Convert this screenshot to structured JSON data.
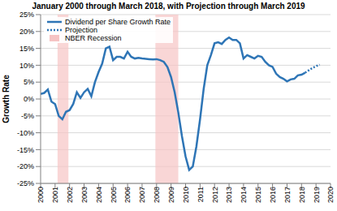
{
  "chart_data": {
    "type": "line",
    "title": "January 2000 through March 2018, with Projection through March 2019",
    "y_label": "Growth Rate",
    "x": [
      2000,
      2000.25,
      2000.5,
      2000.75,
      2001,
      2001.25,
      2001.5,
      2001.75,
      2002,
      2002.25,
      2002.5,
      2002.75,
      2003,
      2003.25,
      2003.5,
      2003.75,
      2004,
      2004.25,
      2004.5,
      2004.75,
      2005,
      2005.25,
      2005.5,
      2005.75,
      2006,
      2006.25,
      2006.5,
      2006.75,
      2007,
      2007.25,
      2007.5,
      2007.75,
      2008,
      2008.25,
      2008.5,
      2008.75,
      2009,
      2009.25,
      2009.5,
      2009.75,
      2010,
      2010.25,
      2010.5,
      2010.75,
      2011,
      2011.25,
      2011.5,
      2011.75,
      2012,
      2012.25,
      2012.5,
      2012.75,
      2013,
      2013.25,
      2013.5,
      2013.75,
      2014,
      2014.25,
      2014.5,
      2014.75,
      2015,
      2015.25,
      2015.5,
      2015.75,
      2016,
      2016.25,
      2016.5,
      2016.75,
      2017,
      2017.25,
      2017.5,
      2017.75,
      2018,
      2018.25,
      2018.5,
      2018.75,
      2019,
      2019.25
    ],
    "series": [
      {
        "name": "Dividend per Share Growth Rate",
        "color": "#2e75b6",
        "line_style": "solid",
        "values": [
          1.5,
          1.8,
          2.8,
          -0.8,
          -1.5,
          -5,
          -6,
          -3.8,
          -3.3,
          -1.5,
          2,
          0.3,
          2,
          3,
          0.8,
          5,
          8,
          10.5,
          15,
          15.5,
          11.5,
          12.5,
          12.5,
          12,
          14,
          12.5,
          12,
          12.2,
          12,
          11.9,
          11.8,
          11.7,
          11.8,
          11.5,
          11,
          9.5,
          6.5,
          2,
          -4,
          -11,
          -17,
          -21,
          -20,
          -14,
          -6,
          3,
          10,
          13,
          16.5,
          16.8,
          16.3,
          17.5,
          18.2,
          17.5,
          17.5,
          16.5,
          12,
          13,
          12.5,
          12,
          12.8,
          12.5,
          11,
          10,
          9.5,
          7.5,
          6.5,
          6,
          5.2,
          5.8,
          6,
          7,
          7.2,
          7.8,
          null,
          null,
          null,
          null
        ]
      },
      {
        "name": "Projection",
        "color": "#2e75b6",
        "line_style": "dotted",
        "values": [
          null,
          null,
          null,
          null,
          null,
          null,
          null,
          null,
          null,
          null,
          null,
          null,
          null,
          null,
          null,
          null,
          null,
          null,
          null,
          null,
          null,
          null,
          null,
          null,
          null,
          null,
          null,
          null,
          null,
          null,
          null,
          null,
          null,
          null,
          null,
          null,
          null,
          null,
          null,
          null,
          null,
          null,
          null,
          null,
          null,
          null,
          null,
          null,
          null,
          null,
          null,
          null,
          null,
          null,
          null,
          null,
          null,
          null,
          null,
          null,
          null,
          null,
          null,
          null,
          null,
          null,
          null,
          null,
          null,
          null,
          null,
          null,
          null,
          7.8,
          8.5,
          9.2,
          9.7,
          10.2
        ]
      }
    ],
    "recessions": {
      "name": "NBER Recession",
      "color": "#f6c4c4",
      "spans": [
        [
          2001.17,
          2001.92
        ],
        [
          2007.92,
          2009.5
        ]
      ]
    },
    "xlim": [
      2000,
      2020
    ],
    "xticks": [
      2000,
      2001,
      2002,
      2003,
      2004,
      2005,
      2006,
      2007,
      2008,
      2009,
      2010,
      2011,
      2012,
      2013,
      2014,
      2015,
      2016,
      2017,
      2018,
      2019,
      2020
    ],
    "ylim": [
      -25,
      25
    ],
    "yticks": [
      {
        "value": -25,
        "label": "-25%"
      },
      {
        "value": -20,
        "label": "-20%"
      },
      {
        "value": -15,
        "label": "-15%"
      },
      {
        "value": -10,
        "label": "-10%"
      },
      {
        "value": -5,
        "label": "-5%"
      },
      {
        "value": 0,
        "label": "0%"
      },
      {
        "value": 5,
        "label": "5%"
      },
      {
        "value": 10,
        "label": "10%"
      },
      {
        "value": 15,
        "label": "15%"
      },
      {
        "value": 20,
        "label": "20%"
      },
      {
        "value": 25,
        "label": "25%"
      }
    ],
    "grid": true,
    "legend": "upper left"
  }
}
